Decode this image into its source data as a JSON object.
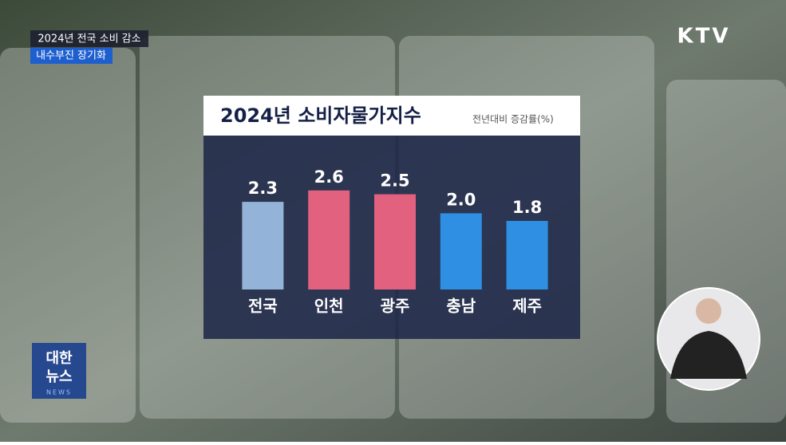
{
  "captions": {
    "headline": "2024년 전국 소비 감소",
    "subhead": "내수부진 장기화"
  },
  "channel_logo": "KTV",
  "program_logo": {
    "line1": "대한",
    "line2": "뉴스",
    "line3": "NEWS"
  },
  "chart_data": {
    "type": "bar",
    "title": "2024년 소비자물가지수",
    "subtitle": "전년대비 증감률(%)",
    "categories": [
      "전국",
      "인천",
      "광주",
      "충남",
      "제주"
    ],
    "values": [
      2.3,
      2.6,
      2.5,
      2.0,
      1.8
    ],
    "value_labels": [
      "2.3",
      "2.6",
      "2.5",
      "2.0",
      "1.8"
    ],
    "colors": [
      "#93b4d8",
      "#e1617f",
      "#e1617f",
      "#2e8fe3",
      "#2e8fe3"
    ],
    "ylim": [
      0,
      3.6
    ]
  }
}
